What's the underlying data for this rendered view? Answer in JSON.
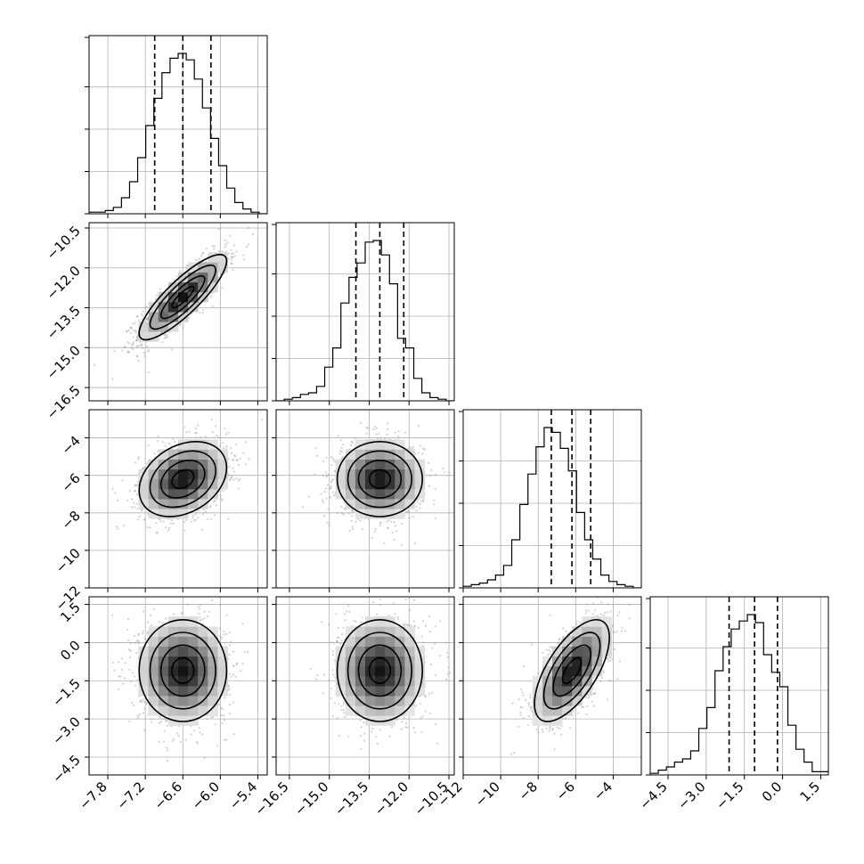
{
  "chart_data": {
    "type": "corner",
    "parameters": [
      {
        "mean": -6.6,
        "sd": 0.35,
        "range": [
          -8.1,
          -5.25
        ],
        "ticks": [
          -7.8,
          -7.2,
          -6.6,
          -6.0,
          -5.4
        ],
        "tick_labels": [
          "−7.8",
          "−7.2",
          "−6.6",
          "−6.0",
          "−5.4"
        ],
        "quantiles": [
          -7.05,
          -6.6,
          -6.15
        ]
      },
      {
        "mean": -13.1,
        "sd": 0.8,
        "range": [
          -17.0,
          -10.3
        ],
        "ticks": [
          -16.5,
          -15.0,
          -13.5,
          -12.0,
          -10.5
        ],
        "tick_labels": [
          "−16.5",
          "−15.0",
          "−13.5",
          "−12.0",
          "−10.5"
        ],
        "quantiles": [
          -14.0,
          -13.1,
          -12.2
        ]
      },
      {
        "mean": -6.2,
        "sd": 1.0,
        "range": [
          -12.0,
          -2.5
        ],
        "ticks": [
          -12,
          -10,
          -8,
          -6,
          -4
        ],
        "tick_labels": [
          "−12",
          "−10",
          "−8",
          "−6",
          "−4"
        ],
        "quantiles": [
          -7.3,
          -6.2,
          -5.2
        ]
      },
      {
        "mean": -1.1,
        "sd": 1.0,
        "range": [
          -5.2,
          1.8
        ],
        "ticks": [
          -4.5,
          -3.0,
          -1.5,
          0.0,
          1.5
        ],
        "tick_labels": [
          "−4.5",
          "−3.0",
          "−1.5",
          "0.0",
          "1.5"
        ],
        "quantiles": [
          -2.1,
          -1.1,
          -0.2
        ]
      }
    ],
    "correlations": [
      [
        1.0,
        0.85,
        0.3,
        0.0
      ],
      [
        0.85,
        1.0,
        0.0,
        0.0
      ],
      [
        0.3,
        0.0,
        1.0,
        0.65
      ],
      [
        0.0,
        0.0,
        0.65,
        1.0
      ]
    ],
    "histograms": [
      [
        0.01,
        0.01,
        0.02,
        0.04,
        0.1,
        0.2,
        0.35,
        0.55,
        0.72,
        0.88,
        0.97,
        1.0,
        0.96,
        0.84,
        0.66,
        0.47,
        0.3,
        0.16,
        0.07,
        0.03,
        0.01,
        0.0
      ],
      [
        0.0,
        0.01,
        0.02,
        0.04,
        0.05,
        0.09,
        0.21,
        0.33,
        0.61,
        0.77,
        0.86,
        0.99,
        1.0,
        0.91,
        0.73,
        0.39,
        0.33,
        0.14,
        0.05,
        0.02,
        0.01,
        0.0
      ],
      [
        0.01,
        0.02,
        0.03,
        0.05,
        0.08,
        0.14,
        0.3,
        0.52,
        0.71,
        0.88,
        1.0,
        0.97,
        0.87,
        0.73,
        0.47,
        0.3,
        0.18,
        0.08,
        0.04,
        0.02,
        0.01,
        0.0
      ],
      [
        0.01,
        0.03,
        0.05,
        0.08,
        0.1,
        0.15,
        0.29,
        0.42,
        0.65,
        0.8,
        0.91,
        0.96,
        1.0,
        0.95,
        0.75,
        0.64,
        0.55,
        0.31,
        0.16,
        0.08,
        0.02,
        0.02
      ]
    ],
    "contour_levels_sigma": [
      0.5,
      1.0,
      1.5,
      2.0
    ],
    "grid": true
  }
}
